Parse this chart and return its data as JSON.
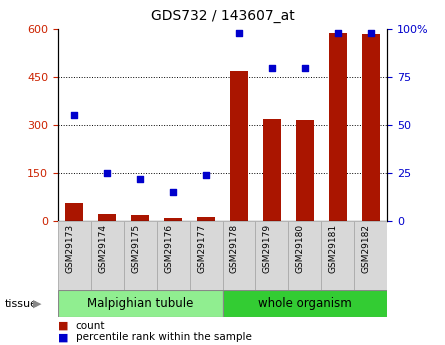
{
  "title": "GDS732 / 143607_at",
  "samples": [
    "GSM29173",
    "GSM29174",
    "GSM29175",
    "GSM29176",
    "GSM29177",
    "GSM29178",
    "GSM29179",
    "GSM29180",
    "GSM29181",
    "GSM29182"
  ],
  "counts": [
    55,
    22,
    18,
    8,
    12,
    470,
    320,
    315,
    590,
    585
  ],
  "percentile_ranks": [
    55,
    25,
    22,
    15,
    24,
    98,
    80,
    80,
    98,
    98
  ],
  "bar_color": "#AA1500",
  "dot_color": "#0000CC",
  "left_ylim": [
    0,
    600
  ],
  "right_ylim": [
    0,
    100
  ],
  "left_yticks": [
    0,
    150,
    300,
    450,
    600
  ],
  "right_yticks": [
    0,
    25,
    50,
    75,
    100
  ],
  "right_yticklabels": [
    "0",
    "25",
    "50",
    "75",
    "100%"
  ],
  "tick_color_left": "#CC2200",
  "tick_color_right": "#0000CC",
  "tissue_mal_color": "#90EE90",
  "tissue_wo_color": "#33CC33",
  "tissue_border_color": "#888888",
  "cell_bg_color": "#d8d8d8",
  "cell_border_color": "#aaaaaa",
  "legend_count": "count",
  "legend_pct": "percentile rank within the sample"
}
